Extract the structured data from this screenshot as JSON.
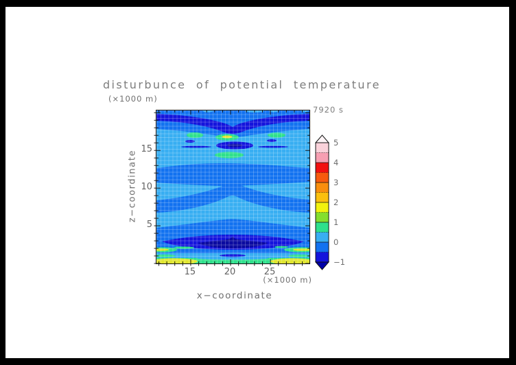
{
  "page": {
    "background": "#ffffff",
    "frame_color": "#000000"
  },
  "chart_data": {
    "type": "heatmap",
    "subtype": "filled-contour",
    "title": "disturbunce  of  potential  temperature",
    "time_label": "7920 s",
    "xlabel": "x−coordinate",
    "ylabel": "z−coordinate",
    "x_unit_label": "(×1000 m)",
    "y_unit_label": "(×1000 m)",
    "xlim": [
      10.7,
      29.9
    ],
    "ylim": [
      0,
      20.3
    ],
    "x_ticks": [
      15,
      20,
      25
    ],
    "y_ticks": [
      5,
      10,
      15
    ],
    "minor_tick_interval": 1,
    "grid": true,
    "axis_color": "#1a1a1a",
    "colorbar": {
      "min": -1,
      "max": 5,
      "step": 0.5,
      "labels": [
        "5",
        "4",
        "3",
        "2",
        "1",
        "0",
        "−1"
      ],
      "segment_colors_top_to_bottom": [
        "#fad2da",
        "#f79fb2",
        "#f21010",
        "#f75a0e",
        "#f98e0e",
        "#fbc00e",
        "#f2f20e",
        "#84de2e",
        "#2ee08c",
        "#38aef2",
        "#1272f0",
        "#1414dc"
      ],
      "over_color": "#fdf4f6",
      "under_color": "#0000a8"
    },
    "field_features": [
      {
        "name": "background",
        "value_range": "0 to 0.5",
        "color": "#38aef2"
      },
      {
        "name": "wave-bands",
        "value_range": "-0.5 to 0",
        "color": "#1272f0",
        "location": "arched horizontal bands across mid-levels and top/bottom"
      },
      {
        "name": "negative-band-top",
        "value_range": "-1 to -0.5",
        "z_approx": 18.5,
        "shape": "full-width band dipping at center x=20"
      },
      {
        "name": "positive-spots",
        "value_range": "0.5 to 2",
        "z_approx": 16.5,
        "shape": "green ellipses at x=15.5, 20, 25.5; yellow core at x=20"
      },
      {
        "name": "negative-ellipse-mid",
        "value_range": "-1 to -0.5",
        "z_approx": 15.5,
        "x_approx": 20
      },
      {
        "name": "positive-spot-mid",
        "value_range": "0.5 to 1",
        "z_approx": 14,
        "x_approx": 20
      },
      {
        "name": "negative-lens-bottom",
        "value_range": "below -1 at core",
        "z_approx": 3,
        "shape": "full-width lens, dark core with central peak"
      },
      {
        "name": "positive-surface-layer",
        "value_range": "0.5 to 2",
        "z_approx": 0.5,
        "shape": "green/yellow stripes near ground, strongest at left and right edges"
      }
    ]
  }
}
